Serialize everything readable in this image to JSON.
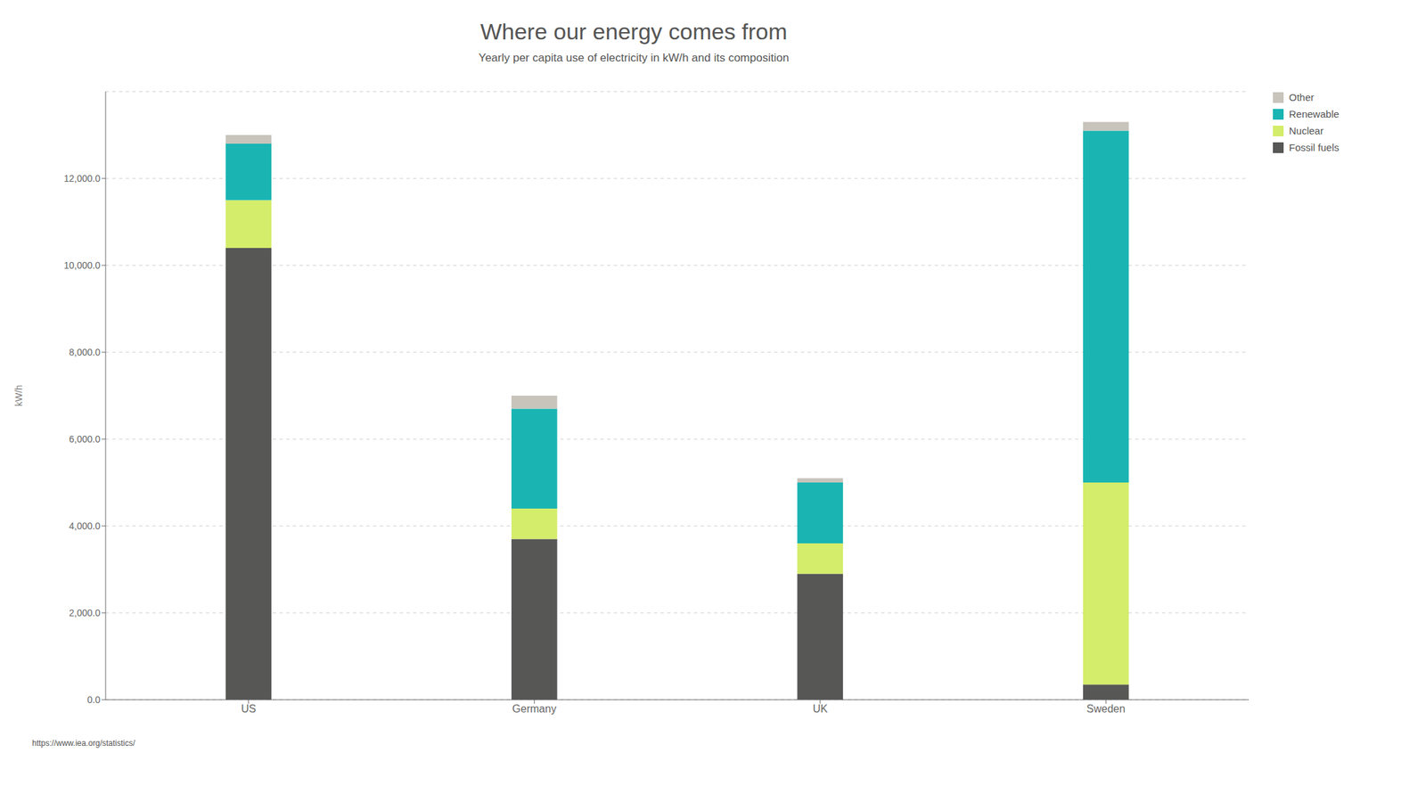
{
  "chart_data": {
    "type": "bar",
    "stacked": true,
    "title": "Where our energy comes from",
    "subtitle": "Yearly per capita use of electricity in kW/h and its composition",
    "annotations": [
      "https://www.iea.org/statistics/"
    ],
    "y_label": "kW/h",
    "categories": [
      "US",
      "Germany",
      "UK",
      "Sweden"
    ],
    "series": [
      {
        "name": "Fossil fuels",
        "color": "#575756",
        "values": [
          10400,
          3700,
          2900,
          350
        ]
      },
      {
        "name": "Nuclear",
        "color": "#d4ed6a",
        "values": [
          1100,
          700,
          700,
          4650
        ]
      },
      {
        "name": "Renewable",
        "color": "#1ab5b3",
        "values": [
          1300,
          2300,
          1400,
          8100
        ]
      },
      {
        "name": "Other",
        "color": "#c8c4bc",
        "values": [
          200,
          300,
          100,
          200
        ]
      }
    ],
    "ylim": [
      0,
      14000
    ],
    "yticks": [
      {
        "value": 0,
        "label": "0.0"
      },
      {
        "value": 2000,
        "label": "2,000.0"
      },
      {
        "value": 4000,
        "label": "4,000.0"
      },
      {
        "value": 6000,
        "label": "6,000.0"
      },
      {
        "value": 8000,
        "label": "8,000.0"
      },
      {
        "value": 10000,
        "label": "10,000.0"
      },
      {
        "value": 12000,
        "label": "12,000.0"
      }
    ],
    "grid": true,
    "legend": "upper right"
  }
}
